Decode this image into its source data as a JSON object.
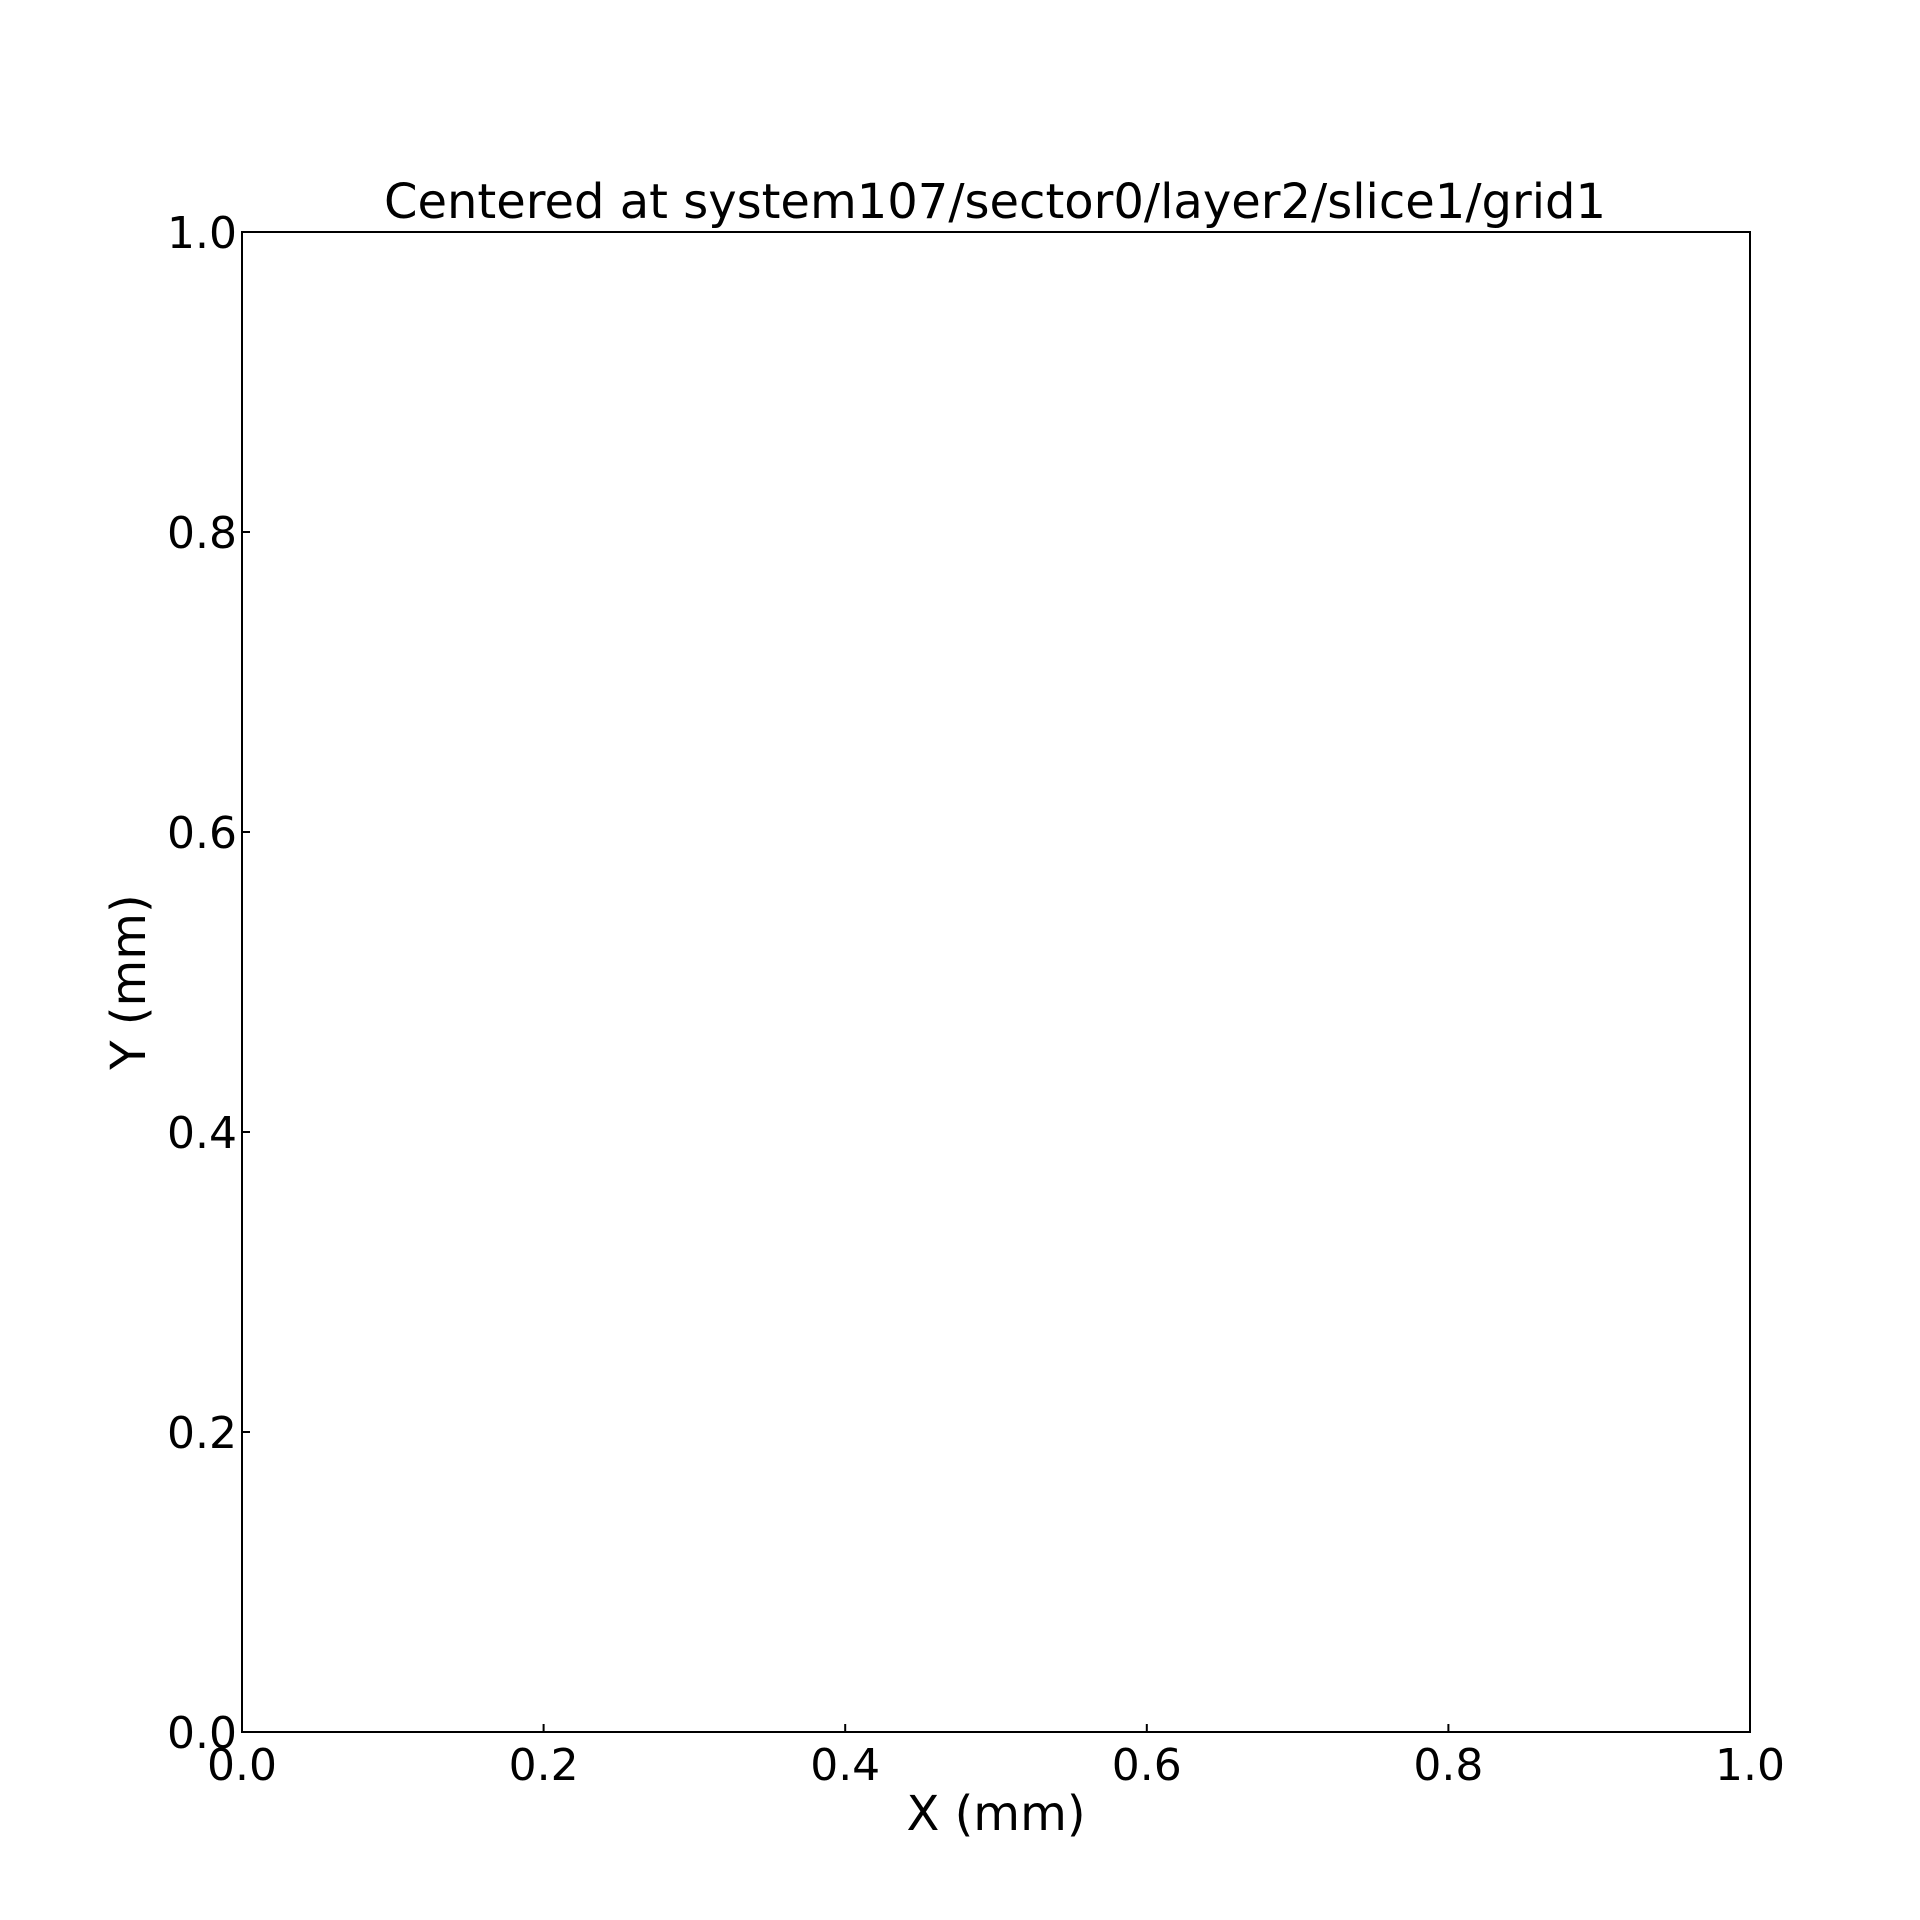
{
  "chart_data": {
    "type": "scatter",
    "title": "Centered at system107/sector0/layer2/slice1/grid1",
    "xlabel": "X (mm)",
    "ylabel": "Y (mm)",
    "xlim": [
      0.0,
      1.0
    ],
    "ylim": [
      0.0,
      1.0
    ],
    "x_ticks": [
      0.0,
      0.2,
      0.4,
      0.6,
      0.8,
      1.0
    ],
    "y_ticks": [
      0.0,
      0.2,
      0.4,
      0.6,
      0.8,
      1.0
    ],
    "x_tick_labels": [
      "0.0",
      "0.2",
      "0.4",
      "0.6",
      "0.8",
      "1.0"
    ],
    "y_tick_labels": [
      "0.0",
      "0.2",
      "0.4",
      "0.6",
      "0.8",
      "1.0"
    ],
    "grid": false,
    "series": [],
    "colors": {
      "axis": "#000000",
      "background": "#ffffff"
    }
  }
}
